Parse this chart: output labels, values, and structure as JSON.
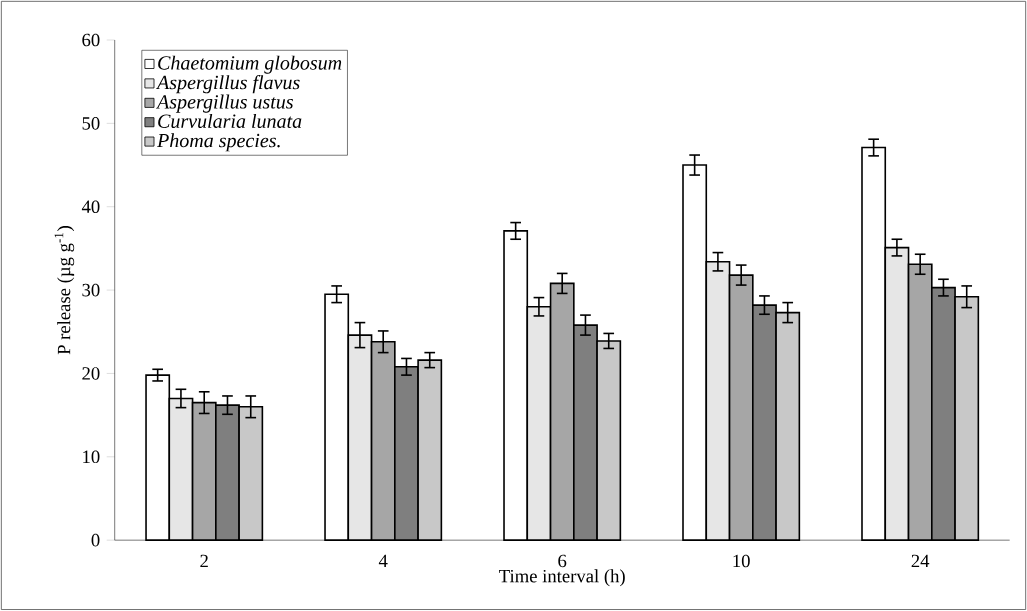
{
  "chart_data": {
    "type": "bar",
    "xlabel": "Time interval (h)",
    "ylabel": "P release (µg g$^{-1}$)",
    "categories": [
      "2",
      "4",
      "6",
      "10",
      "24"
    ],
    "series": [
      {
        "name": "Chaetomium globosum",
        "color": "#ffffff",
        "values": [
          19.8,
          29.5,
          37.1,
          45.0,
          47.1
        ],
        "errors": [
          0.7,
          1.0,
          1.0,
          1.2,
          1.0
        ]
      },
      {
        "name": "Aspergillus flavus",
        "color": "#e6e6e6",
        "values": [
          17.0,
          24.6,
          28.0,
          33.4,
          35.1
        ],
        "errors": [
          1.1,
          1.5,
          1.1,
          1.1,
          1.0
        ]
      },
      {
        "name": "Aspergillus ustus",
        "color": "#a6a6a6",
        "values": [
          16.5,
          23.8,
          30.8,
          31.8,
          33.1
        ],
        "errors": [
          1.3,
          1.3,
          1.2,
          1.2,
          1.2
        ]
      },
      {
        "name": "Curvularia lunata",
        "color": "#7f7f7f",
        "values": [
          16.2,
          20.8,
          25.8,
          28.2,
          30.3
        ],
        "errors": [
          1.1,
          1.0,
          1.2,
          1.1,
          1.0
        ]
      },
      {
        "name": "Phoma species.",
        "color": "#c8c8c8",
        "values": [
          16.0,
          21.6,
          23.9,
          27.3,
          29.2
        ],
        "errors": [
          1.3,
          0.9,
          0.9,
          1.2,
          1.3
        ]
      }
    ],
    "ylim": [
      0,
      60
    ],
    "yticks": [
      0,
      10,
      20,
      30,
      40,
      50,
      60
    ],
    "legend": "top left",
    "grid": false
  }
}
